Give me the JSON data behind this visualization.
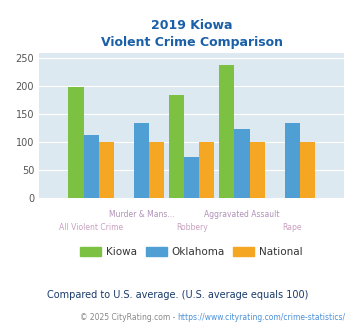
{
  "title_line1": "2019 Kiowa",
  "title_line2": "Violent Crime Comparison",
  "cat_labels_row1": [
    "",
    "Murder & Mans...",
    "",
    "Aggravated Assault",
    ""
  ],
  "cat_labels_row2": [
    "All Violent Crime",
    "",
    "Robbery",
    "",
    "Rape"
  ],
  "kiowa": [
    198,
    0,
    184,
    238,
    0
  ],
  "oklahoma": [
    113,
    135,
    73,
    124,
    135
  ],
  "national": [
    101,
    101,
    101,
    101,
    101
  ],
  "bar_colors": {
    "kiowa": "#7dc142",
    "oklahoma": "#4f9fd4",
    "national": "#f5a623"
  },
  "ylim": [
    0,
    260
  ],
  "yticks": [
    0,
    50,
    100,
    150,
    200,
    250
  ],
  "background_color": "#dde9f0",
  "title_color": "#1a5fa8",
  "label_color_row1": "#b09ab0",
  "label_color_row2": "#c8a0c8",
  "footer_text": "Compared to U.S. average. (U.S. average equals 100)",
  "footer_color": "#1a3a6a",
  "copyright_text_left": "© 2025 CityRating.com - ",
  "copyright_text_link": "https://www.cityrating.com/crime-statistics/",
  "copyright_color": "#888888",
  "copyright_link_color": "#4a90d9"
}
